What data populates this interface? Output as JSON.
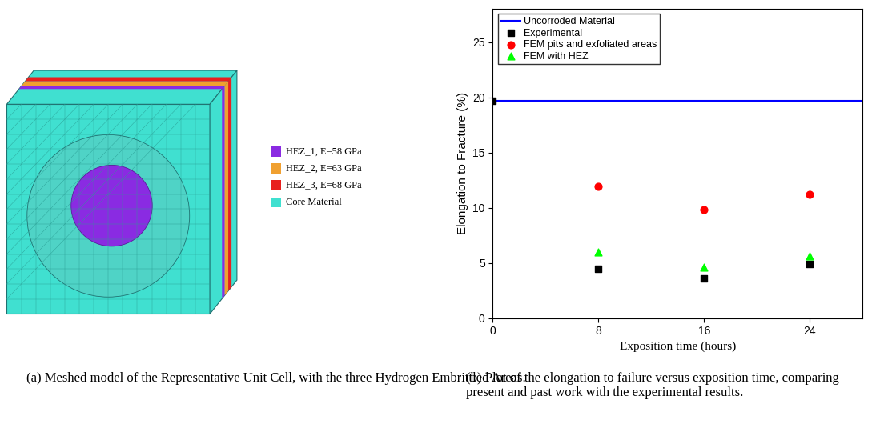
{
  "diagram": {
    "legend": [
      {
        "label": "HEZ_1, E=58 GPa",
        "color": "#8a2be2"
      },
      {
        "label": "HEZ_2, E=63 GPa",
        "color": "#f0a030"
      },
      {
        "label": "HEZ_3, E=68 GPa",
        "color": "#e8201e"
      },
      {
        "label": "Core Material",
        "color": "#40e0d0"
      }
    ],
    "caption": "(a) Meshed model of the Representative Unit Cell, with the three Hydrogen Embrittled Areas."
  },
  "chart_data": {
    "type": "scatter",
    "caption": "(b) Plot of the elongation to failure versus exposition time, comparing present and past work with the experimental results.",
    "xlabel": "Exposition time (hours)",
    "ylabel": "Elongation to Fracture (%)",
    "xlim": [
      0,
      28
    ],
    "ylim": [
      0,
      28
    ],
    "xticks": [
      0,
      8,
      16,
      24
    ],
    "yticks": [
      0,
      5,
      10,
      15,
      20,
      25
    ],
    "legend": "upper left",
    "series": [
      {
        "name": "Uncorroded Material",
        "type": "line",
        "line_style": "solid",
        "color": "#0000ff",
        "x": [
          0,
          28
        ],
        "values": [
          19.7,
          19.7
        ]
      },
      {
        "name": "Experimental",
        "type": "scatter",
        "marker": "square",
        "color": "#000000",
        "x": [
          0,
          8,
          16,
          24
        ],
        "values": [
          19.7,
          4.5,
          3.6,
          4.9
        ]
      },
      {
        "name": "FEM pits and exfoliated areas",
        "type": "scatter",
        "marker": "circle",
        "color": "#ff0000",
        "x": [
          8,
          16,
          24
        ],
        "values": [
          11.9,
          9.8,
          11.2
        ]
      },
      {
        "name": "FEM with HEZ",
        "type": "scatter",
        "marker": "triangle",
        "color": "#00ff00",
        "x": [
          8,
          16,
          24
        ],
        "values": [
          6.0,
          4.6,
          5.6
        ]
      }
    ]
  }
}
